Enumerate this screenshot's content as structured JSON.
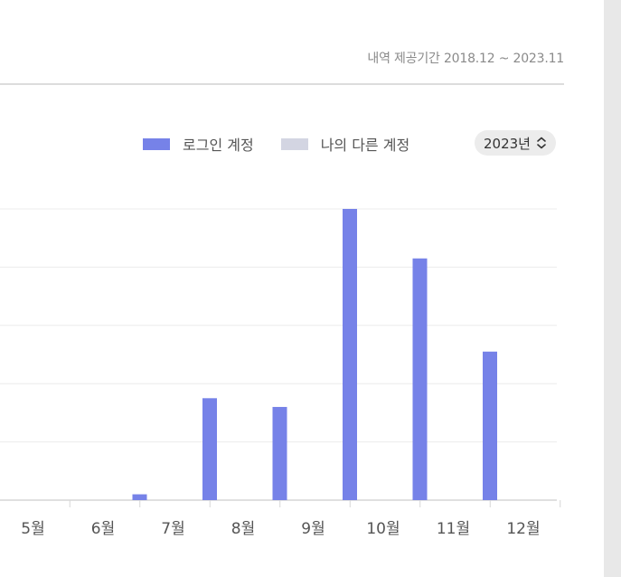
{
  "header": {
    "period": "내역 제공기간 2018.12 ~ 2023.11"
  },
  "legend": {
    "items": [
      {
        "label": "로그인 계정",
        "color": "#7682e8"
      },
      {
        "label": "나의 다른 계정",
        "color": "#d3d5e2"
      }
    ]
  },
  "year_select": {
    "value": "2023년",
    "icon": "chevron-up-down-icon"
  },
  "chart_data": {
    "type": "bar",
    "categories": [
      "5월",
      "6월",
      "7월",
      "8월",
      "9월",
      "10월",
      "11월",
      "12월"
    ],
    "series": [
      {
        "name": "로그인 계정",
        "values": [
          0,
          1,
          17.5,
          16,
          50,
          41.5,
          25.5,
          0
        ]
      },
      {
        "name": "나의 다른 계정",
        "values": [
          0,
          0,
          0,
          0,
          0,
          0,
          0,
          0
        ]
      }
    ],
    "ylim": [
      0,
      50
    ],
    "grid": true,
    "legend_position": "top-right"
  }
}
